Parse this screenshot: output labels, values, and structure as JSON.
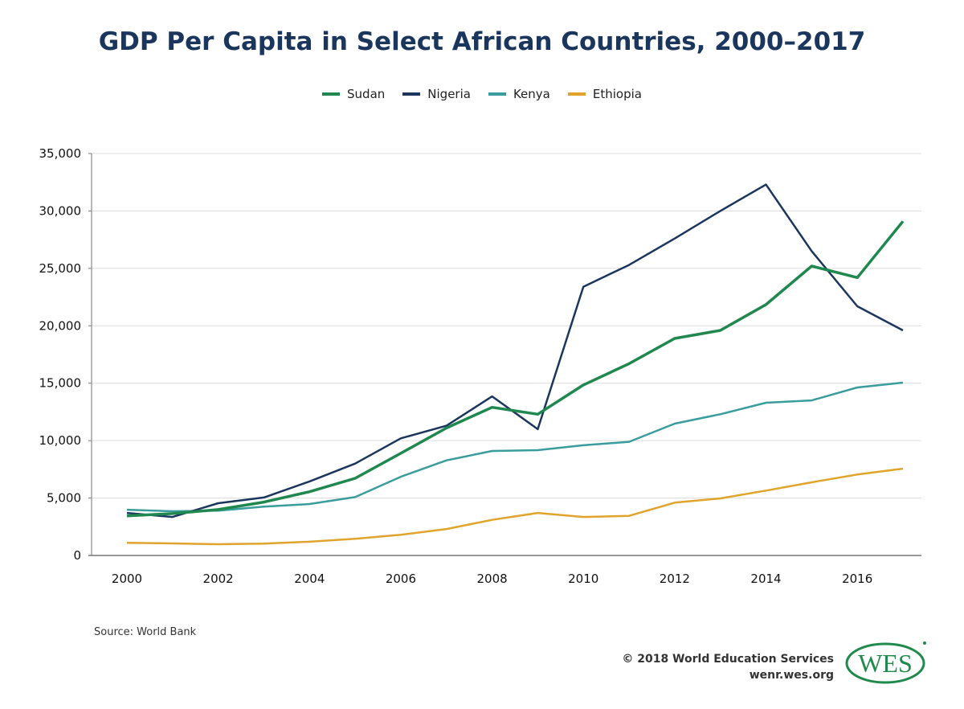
{
  "chart_data": {
    "type": "line",
    "title": "GDP Per Capita in Select African Countries, 2000–2017",
    "xlabel": "",
    "ylabel": "",
    "x": [
      2000,
      2001,
      2002,
      2003,
      2004,
      2005,
      2006,
      2007,
      2008,
      2009,
      2010,
      2011,
      2012,
      2013,
      2014,
      2015,
      2016,
      2017
    ],
    "x_tick_labels": [
      "2000",
      "2002",
      "2004",
      "2006",
      "2008",
      "2010",
      "2012",
      "2014",
      "2016"
    ],
    "y_ticks": [
      0,
      5000,
      10000,
      15000,
      20000,
      25000,
      30000,
      35000
    ],
    "y_tick_labels": [
      "0",
      "5,000",
      "10,000",
      "15,000",
      "20,000",
      "25,000",
      "30,000",
      "35,000"
    ],
    "ylim": [
      0,
      35000
    ],
    "xlim": [
      2000,
      2017
    ],
    "grid": "horizontal",
    "legend_position": "top-center",
    "series": [
      {
        "name": "Sudan",
        "color": "#20884f",
        "values": [
          3450,
          3650,
          4000,
          4650,
          5550,
          6720,
          8900,
          11100,
          12900,
          12300,
          14850,
          16700,
          18900,
          19600,
          21850,
          25200,
          24200,
          29100
        ]
      },
      {
        "name": "Nigeria",
        "color": "#1b365d",
        "values": [
          3700,
          3350,
          4550,
          5050,
          6450,
          8000,
          10200,
          11300,
          13850,
          11000,
          23400,
          25300,
          27600,
          30000,
          32300,
          26500,
          21700,
          19600
        ]
      },
      {
        "name": "Kenya",
        "color": "#3a9c9c",
        "values": [
          3980,
          3850,
          3900,
          4250,
          4480,
          5080,
          6850,
          8280,
          9100,
          9170,
          9600,
          9900,
          11480,
          12300,
          13300,
          13500,
          14630,
          15050
        ]
      },
      {
        "name": "Ethiopia",
        "color": "#e0a42c",
        "values": [
          1100,
          1050,
          980,
          1030,
          1200,
          1450,
          1800,
          2300,
          3100,
          3700,
          3350,
          3450,
          4600,
          4970,
          5650,
          6370,
          7050,
          7560
        ]
      }
    ]
  },
  "footer": {
    "source": "Source: World Bank",
    "copyright": "© 2018 World Education Services",
    "website": "wenr.wes.org",
    "logo_text": "WES",
    "logo_color": "#1f8a4c"
  }
}
